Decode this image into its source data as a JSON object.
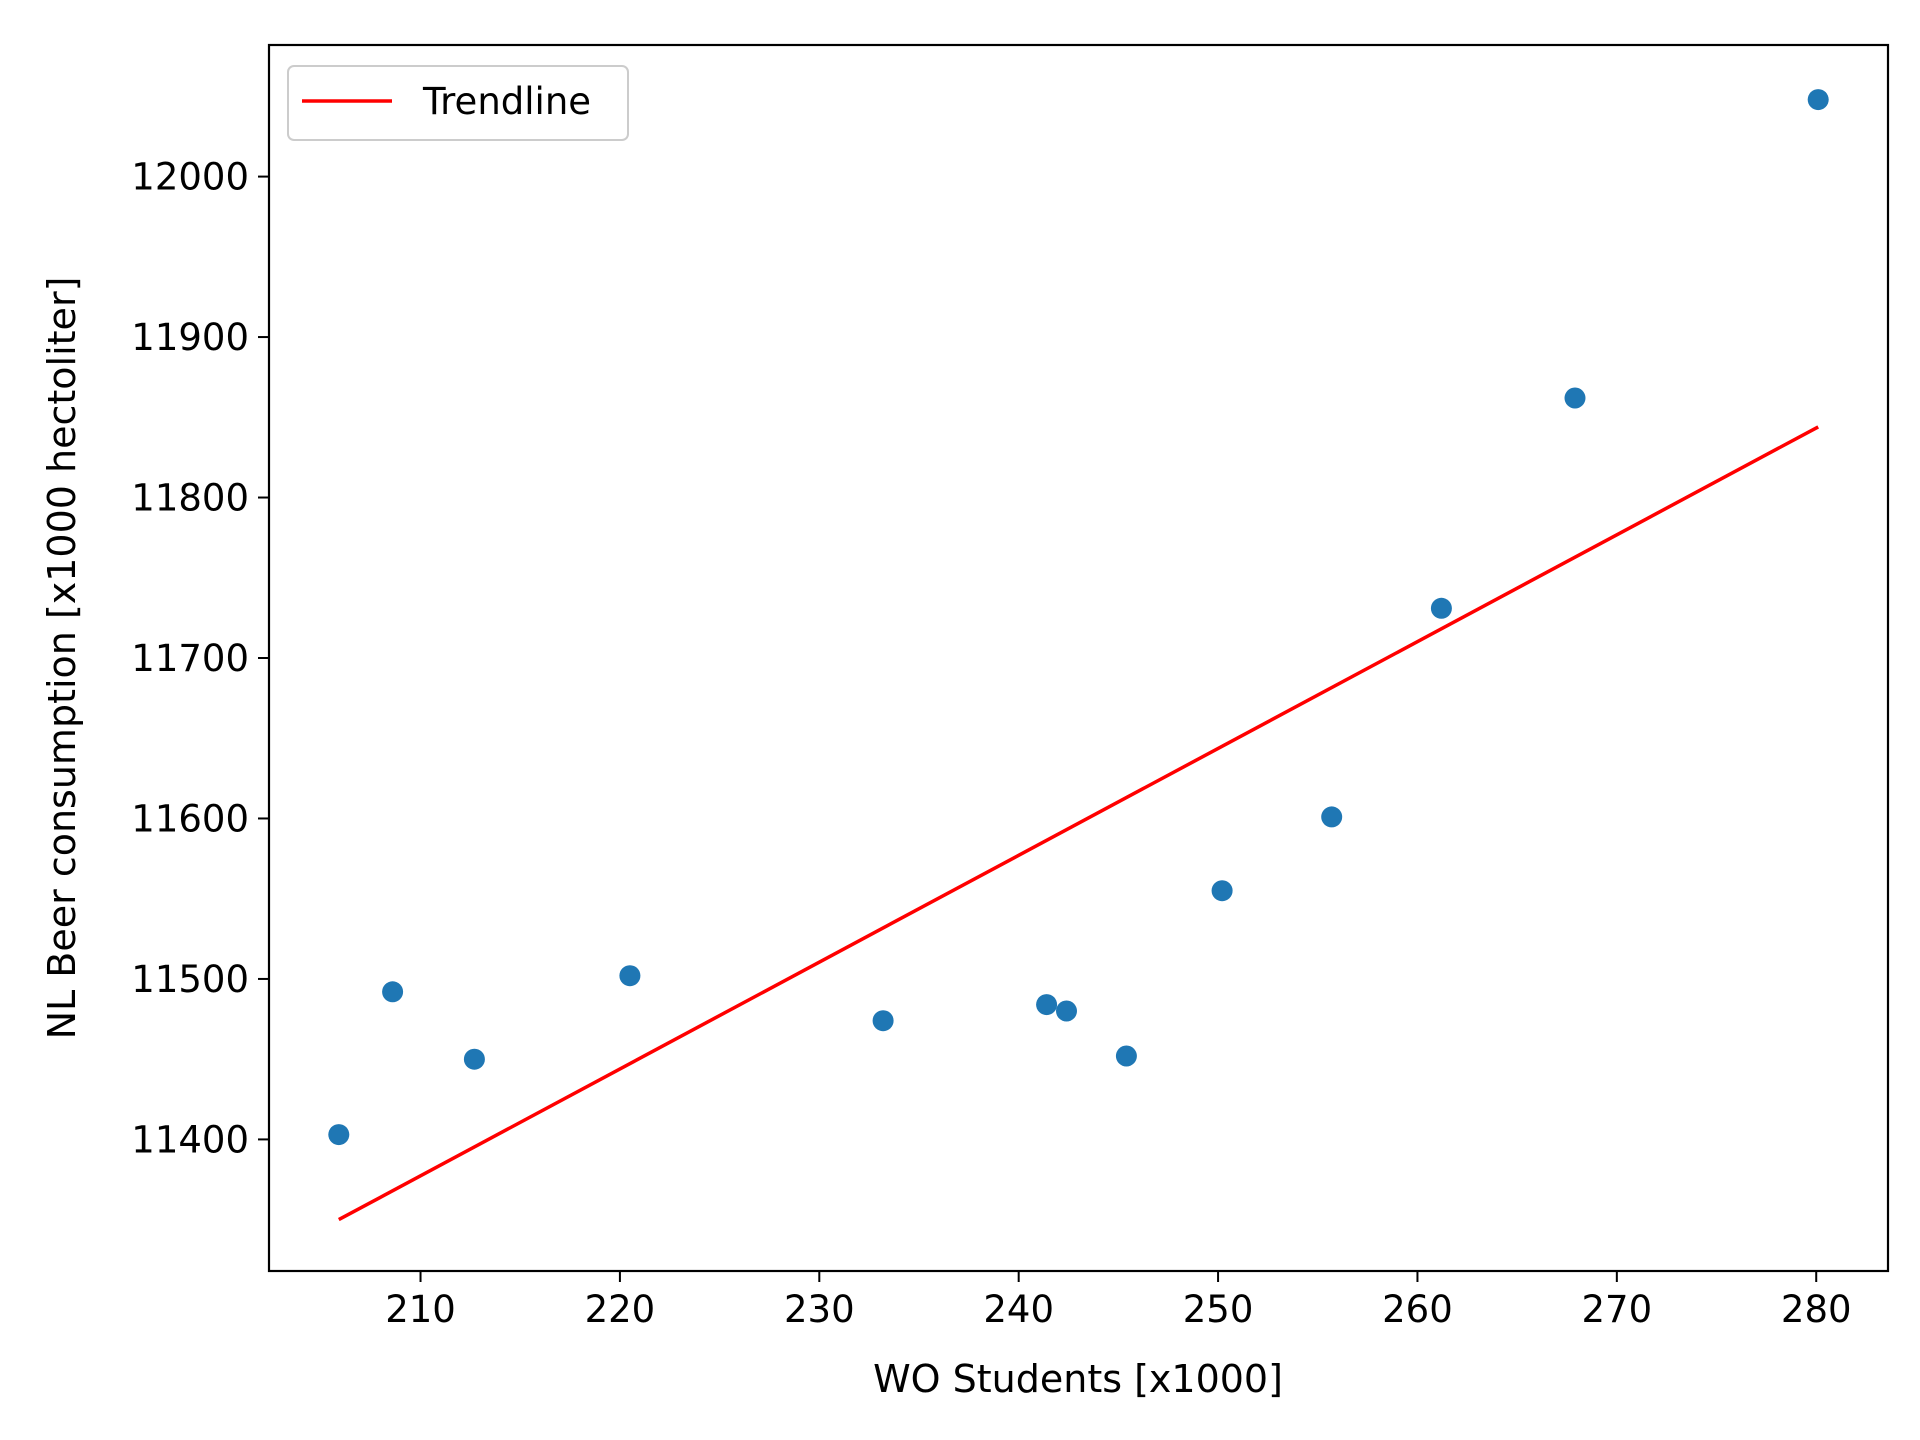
{
  "chart_data": {
    "type": "scatter",
    "title": "",
    "xlabel": "WO Students [x1000]",
    "ylabel": "NL Beer consumption [x1000 hectoliter]",
    "xlim": [
      202.4,
      283.6
    ],
    "ylim": [
      11318,
      12082
    ],
    "xticks": [
      210,
      220,
      230,
      240,
      250,
      260,
      270,
      280
    ],
    "yticks": [
      11400,
      11500,
      11600,
      11700,
      11800,
      11900,
      12000
    ],
    "grid": false,
    "legend": {
      "position": "top-left",
      "entries": [
        {
          "label": "Trendline",
          "color": "#ff0000",
          "marker": "line"
        }
      ]
    },
    "series": [
      {
        "type": "scatter",
        "color": "#1f77b4",
        "x": [
          205.9,
          208.6,
          212.7,
          220.5,
          233.2,
          241.4,
          242.4,
          245.4,
          250.2,
          255.7,
          261.2,
          267.9,
          280.1
        ],
        "y": [
          11403,
          11492,
          11450,
          11502,
          11474,
          11484,
          11480,
          11452,
          11555,
          11601,
          11731,
          11862,
          12048
        ]
      },
      {
        "type": "line",
        "name": "Trendline",
        "color": "#ff0000",
        "x": [
          205.9,
          280.1
        ],
        "y": [
          11350,
          11844
        ]
      }
    ]
  }
}
